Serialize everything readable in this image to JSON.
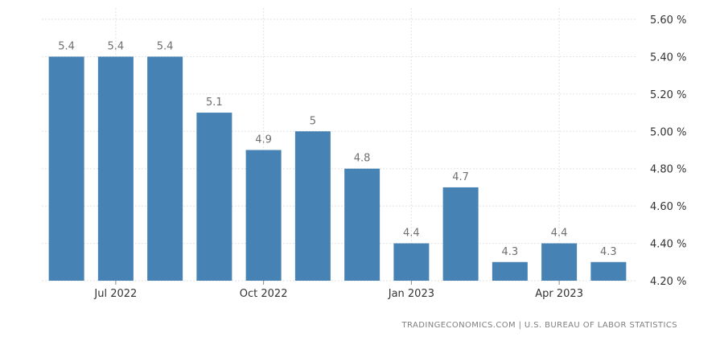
{
  "chart_data": {
    "type": "bar",
    "categories": [
      "Jun 2022",
      "Jul 2022",
      "Aug 2022",
      "Sep 2022",
      "Oct 2022",
      "Nov 2022",
      "Dec 2022",
      "Jan 2023",
      "Feb 2023",
      "Mar 2023",
      "Apr 2023",
      "May 2023"
    ],
    "values": [
      5.4,
      5.4,
      5.4,
      5.1,
      4.9,
      5.0,
      4.8,
      4.4,
      4.7,
      4.3,
      4.4,
      4.3
    ],
    "data_labels": [
      "5.4",
      "5.4",
      "5.4",
      "5.1",
      "4.9",
      "5",
      "4.8",
      "4.4",
      "4.7",
      "4.3",
      "4.4",
      "4.3"
    ],
    "title": "",
    "xlabel": "",
    "ylabel": "",
    "ylim": [
      4.2,
      5.6
    ],
    "yticks": [
      5.6,
      5.4,
      5.2,
      5.0,
      4.8,
      4.6,
      4.4,
      4.2
    ],
    "ytick_labels": [
      "5.60 %",
      "5.40 %",
      "5.20 %",
      "5.00 %",
      "4.80 %",
      "4.60 %",
      "4.40 %",
      "4.20 %"
    ],
    "xticks": [
      {
        "category_index": 1,
        "label": "Jul 2022"
      },
      {
        "category_index": 4,
        "label": "Oct 2022"
      },
      {
        "category_index": 7,
        "label": "Jan 2023"
      },
      {
        "category_index": 10,
        "label": "Apr 2023"
      }
    ],
    "grid": true,
    "y_axis_position": "right",
    "bar_color": "#4682b4"
  },
  "source": "TRADINGECONOMICS.COM | U.S. BUREAU OF LABOR STATISTICS"
}
